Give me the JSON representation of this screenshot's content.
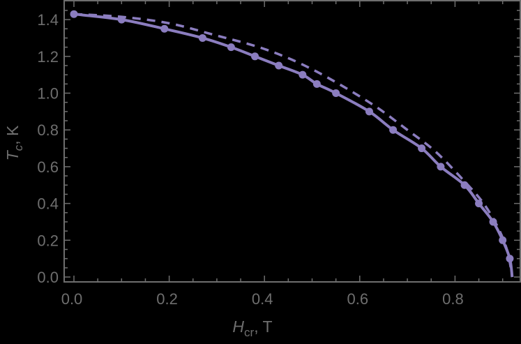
{
  "chart_data": {
    "type": "line",
    "title": "",
    "xlabel": "H_cr, T",
    "ylabel": "T_c, K",
    "xlabel_parts": {
      "main": "H",
      "sub": "cr",
      "unit": ", T"
    },
    "ylabel_parts": {
      "main": "T",
      "sub": "c",
      "unit": ", K"
    },
    "xlim": [
      0.0,
      0.935
    ],
    "ylim": [
      -0.01,
      1.5
    ],
    "x_ticks": [
      "0.0",
      "0.2",
      "0.4",
      "0.6",
      "0.8"
    ],
    "x_tick_values": [
      0.0,
      0.2,
      0.4,
      0.6,
      0.8
    ],
    "y_ticks": [
      "0.0",
      "0.2",
      "0.4",
      "0.6",
      "0.8",
      "1.0",
      "1.2",
      "1.4"
    ],
    "y_tick_values": [
      0.0,
      0.2,
      0.4,
      0.6,
      0.8,
      1.0,
      1.2,
      1.4
    ],
    "grid": false,
    "legend": null,
    "frame": true,
    "series": [
      {
        "name": "solid-with-points",
        "style": "solid",
        "markers": true,
        "color": "#8b7dbf",
        "x": [
          0.0,
          0.1,
          0.19,
          0.27,
          0.33,
          0.38,
          0.43,
          0.48,
          0.51,
          0.55,
          0.62,
          0.67,
          0.73,
          0.77,
          0.82,
          0.85,
          0.88,
          0.9,
          0.915
        ],
        "y": [
          1.43,
          1.4,
          1.35,
          1.3,
          1.25,
          1.2,
          1.15,
          1.1,
          1.05,
          1.0,
          0.9,
          0.8,
          0.7,
          0.6,
          0.5,
          0.4,
          0.3,
          0.2,
          0.1
        ],
        "curve_end": [
          0.92,
          0.0
        ]
      },
      {
        "name": "dashed",
        "style": "dashed",
        "markers": false,
        "color": "#8b7dbf",
        "x": [
          0.0,
          0.1,
          0.2,
          0.29,
          0.4,
          0.5,
          0.62,
          0.7,
          0.76,
          0.82,
          0.86,
          0.89,
          0.91,
          0.92
        ],
        "y": [
          1.43,
          1.415,
          1.38,
          1.32,
          1.24,
          1.13,
          0.95,
          0.8,
          0.68,
          0.52,
          0.4,
          0.27,
          0.14,
          0.0
        ]
      }
    ]
  }
}
